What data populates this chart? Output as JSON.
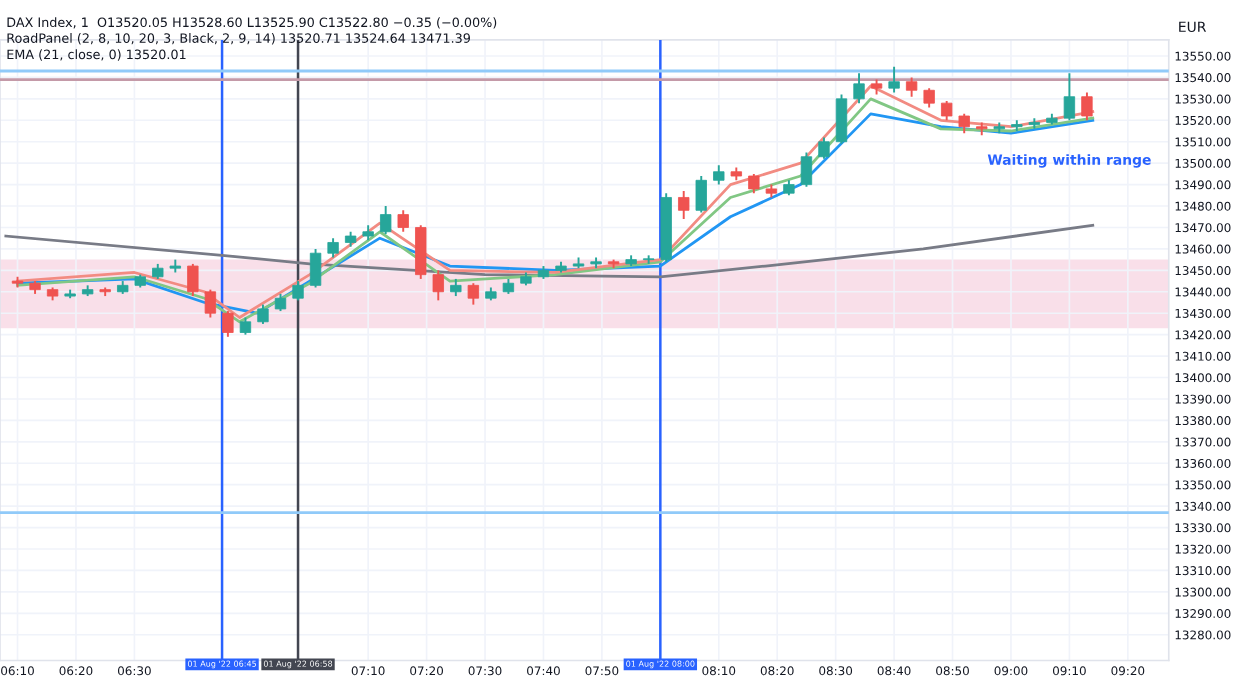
{
  "chart_data": {
    "type": "candlestick",
    "title": "DAX Index, 1  O13520.05 H13528.60 L13525.90 C13522.80 −0.35 (−0.00%)",
    "subtitle": "RoadPanel (2, 8, 10, 20, 3, Black, 2, 9, 14) 13520.71 13524.64 13471.39\nEMA (21, close, 0) 13520.01",
    "ylabel": "EUR",
    "x": [
      "2022-08-01T06:10",
      "2022-08-01T06:13",
      "2022-08-01T06:16",
      "2022-08-01T06:19",
      "2022-08-01T06:22",
      "2022-08-01T06:25",
      "2022-08-01T06:28",
      "2022-08-01T06:31",
      "2022-08-01T06:34",
      "2022-08-01T06:37",
      "2022-08-01T06:40",
      "2022-08-01T06:43",
      "2022-08-01T06:46",
      "2022-08-01T06:49",
      "2022-08-01T06:52",
      "2022-08-01T06:55",
      "2022-08-01T06:58",
      "2022-08-01T07:01",
      "2022-08-01T07:04",
      "2022-08-01T07:07",
      "2022-08-01T07:10",
      "2022-08-01T07:13",
      "2022-08-01T07:16",
      "2022-08-01T07:19",
      "2022-08-01T07:22",
      "2022-08-01T07:25",
      "2022-08-01T07:28",
      "2022-08-01T07:31",
      "2022-08-01T07:34",
      "2022-08-01T07:37",
      "2022-08-01T07:40",
      "2022-08-01T07:43",
      "2022-08-01T07:46",
      "2022-08-01T07:49",
      "2022-08-01T07:52",
      "2022-08-01T07:55",
      "2022-08-01T07:58",
      "2022-08-01T08:01",
      "2022-08-01T08:04",
      "2022-08-01T08:07",
      "2022-08-01T08:10",
      "2022-08-01T08:13",
      "2022-08-01T08:16",
      "2022-08-01T08:19",
      "2022-08-01T08:22",
      "2022-08-01T08:25",
      "2022-08-01T08:28",
      "2022-08-01T08:31",
      "2022-08-01T08:34",
      "2022-08-01T08:37",
      "2022-08-01T08:40",
      "2022-08-01T08:43",
      "2022-08-01T08:46",
      "2022-08-01T08:49",
      "2022-08-01T08:52",
      "2022-08-01T08:55",
      "2022-08-01T08:58",
      "2022-08-01T09:01",
      "2022-08-01T09:04",
      "2022-08-01T09:07",
      "2022-08-01T09:10",
      "2022-08-01T09:13"
    ],
    "ohlc": [
      [
        13445,
        13447,
        13442,
        13444
      ],
      [
        13444,
        13445,
        13439,
        13441
      ],
      [
        13441,
        13442,
        13436,
        13438
      ],
      [
        13438,
        13441,
        13437,
        13439
      ],
      [
        13439,
        13443,
        13438,
        13441
      ],
      [
        13441,
        13442,
        13438,
        13440
      ],
      [
        13440,
        13445,
        13439,
        13443
      ],
      [
        13443,
        13448,
        13442,
        13447
      ],
      [
        13447,
        13453,
        13446,
        13451
      ],
      [
        13451,
        13455,
        13449,
        13452
      ],
      [
        13452,
        13453,
        13438,
        13440
      ],
      [
        13440,
        13441,
        13428,
        13430
      ],
      [
        13430,
        13431,
        13419,
        13421
      ],
      [
        13421,
        13428,
        13420,
        13426
      ],
      [
        13426,
        13434,
        13425,
        13432
      ],
      [
        13432,
        13439,
        13431,
        13437
      ],
      [
        13437,
        13445,
        13436,
        13443
      ],
      [
        13443,
        13460,
        13442,
        13458
      ],
      [
        13458,
        13465,
        13456,
        13463
      ],
      [
        13463,
        13468,
        13461,
        13466
      ],
      [
        13466,
        13471,
        13464,
        13468
      ],
      [
        13468,
        13480,
        13467,
        13476
      ],
      [
        13476,
        13478,
        13468,
        13470
      ],
      [
        13470,
        13471,
        13446,
        13448
      ],
      [
        13448,
        13450,
        13436,
        13440
      ],
      [
        13440,
        13446,
        13438,
        13443
      ],
      [
        13443,
        13444,
        13434,
        13437
      ],
      [
        13437,
        13442,
        13436,
        13440
      ],
      [
        13440,
        13446,
        13439,
        13444
      ],
      [
        13444,
        13449,
        13443,
        13447
      ],
      [
        13447,
        13452,
        13446,
        13450
      ],
      [
        13450,
        13454,
        13449,
        13452
      ],
      [
        13452,
        13456,
        13451,
        13453
      ],
      [
        13453,
        13456,
        13451,
        13454
      ],
      [
        13454,
        13455,
        13451,
        13453
      ],
      [
        13453,
        13457,
        13452,
        13455
      ],
      [
        13455,
        13457,
        13453,
        13455
      ],
      [
        13455,
        13486,
        13454,
        13484
      ],
      [
        13484,
        13487,
        13474,
        13478
      ],
      [
        13478,
        13494,
        13477,
        13492
      ],
      [
        13492,
        13499,
        13490,
        13496
      ],
      [
        13496,
        13498,
        13492,
        13494
      ],
      [
        13494,
        13495,
        13486,
        13488
      ],
      [
        13488,
        13490,
        13484,
        13486
      ],
      [
        13486,
        13492,
        13485,
        13490
      ],
      [
        13490,
        13505,
        13489,
        13503
      ],
      [
        13503,
        13512,
        13502,
        13510
      ],
      [
        13510,
        13532,
        13509,
        13530
      ],
      [
        13530,
        13542,
        13528,
        13537
      ],
      [
        13537,
        13539,
        13532,
        13535
      ],
      [
        13535,
        13545,
        13533,
        13538
      ],
      [
        13538,
        13540,
        13531,
        13534
      ],
      [
        13534,
        13535,
        13526,
        13528
      ],
      [
        13528,
        13529,
        13520,
        13522
      ],
      [
        13522,
        13523,
        13514,
        13517
      ],
      [
        13517,
        13519,
        13513,
        13516
      ],
      [
        13516,
        13519,
        13514,
        13517
      ],
      [
        13517,
        13520,
        13515,
        13518
      ],
      [
        13518,
        13521,
        13516,
        13519
      ],
      [
        13519,
        13523,
        13518,
        13521
      ],
      [
        13521,
        13542,
        13520,
        13531
      ],
      [
        13531,
        13533,
        13520,
        13522
      ]
    ],
    "series": [
      {
        "type": "line",
        "color": "#787b86",
        "x": [
          "2022-08-01T06:08",
          "2022-08-01T06:45",
          "2022-08-01T07:00",
          "2022-08-01T07:30",
          "2022-08-01T08:00",
          "2022-08-01T08:18",
          "2022-08-01T08:45",
          "2022-08-01T09:14"
        ],
        "values": [
          13466,
          13457,
          13453,
          13448,
          13447,
          13452,
          13460,
          13471
        ]
      },
      {
        "type": "line",
        "color": "#2196f3",
        "x": [
          "2022-08-01T06:10",
          "2022-08-01T06:30",
          "2022-08-01T06:42",
          "2022-08-01T06:51",
          "2022-08-01T07:00",
          "2022-08-01T07:12",
          "2022-08-01T07:24",
          "2022-08-01T07:42",
          "2022-08-01T08:00",
          "2022-08-01T08:12",
          "2022-08-01T08:24",
          "2022-08-01T08:36",
          "2022-08-01T08:48",
          "2022-08-01T09:00",
          "2022-08-01T09:14"
        ],
        "values": [
          13444,
          13446,
          13435,
          13430,
          13445,
          13465,
          13452,
          13450,
          13452,
          13475,
          13490,
          13523,
          13517,
          13514,
          13520
        ]
      },
      {
        "type": "line",
        "color": "#81c784",
        "x": [
          "2022-08-01T06:10",
          "2022-08-01T06:30",
          "2022-08-01T06:42",
          "2022-08-01T06:48",
          "2022-08-01T07:00",
          "2022-08-01T07:12",
          "2022-08-01T07:24",
          "2022-08-01T07:42",
          "2022-08-01T08:00",
          "2022-08-01T08:12",
          "2022-08-01T08:24",
          "2022-08-01T08:36",
          "2022-08-01T08:48",
          "2022-08-01T09:00",
          "2022-08-01T09:14"
        ],
        "values": [
          13443,
          13447,
          13437,
          13426,
          13444,
          13468,
          13445,
          13448,
          13454,
          13484,
          13494,
          13530,
          13516,
          13515,
          13521
        ]
      },
      {
        "type": "line",
        "color": "#f28b82",
        "x": [
          "2022-08-01T06:10",
          "2022-08-01T06:30",
          "2022-08-01T06:42",
          "2022-08-01T06:48",
          "2022-08-01T07:00",
          "2022-08-01T07:12",
          "2022-08-01T07:24",
          "2022-08-01T07:42",
          "2022-08-01T08:00",
          "2022-08-01T08:12",
          "2022-08-01T08:24",
          "2022-08-01T08:36",
          "2022-08-01T08:48",
          "2022-08-01T09:00",
          "2022-08-01T09:14"
        ],
        "values": [
          13445,
          13449,
          13440,
          13428,
          13448,
          13472,
          13450,
          13449,
          13455,
          13490,
          13500,
          13536,
          13520,
          13517,
          13524
        ]
      }
    ],
    "xlim": [
      "2022-08-01T06:07",
      "2022-08-01T09:27"
    ],
    "ylim": [
      13268,
      13557.5
    ],
    "xticks": [
      {
        "value": "2022-08-01T06:10",
        "label": "06:10"
      },
      {
        "value": "2022-08-01T06:20",
        "label": "06:20"
      },
      {
        "value": "2022-08-01T06:30",
        "label": "06:30"
      },
      {
        "value": "2022-08-01T07:10",
        "label": "07:10"
      },
      {
        "value": "2022-08-01T07:20",
        "label": "07:20"
      },
      {
        "value": "2022-08-01T07:30",
        "label": "07:30"
      },
      {
        "value": "2022-08-01T07:40",
        "label": "07:40"
      },
      {
        "value": "2022-08-01T07:50",
        "label": "07:50"
      },
      {
        "value": "2022-08-01T08:10",
        "label": "08:10"
      },
      {
        "value": "2022-08-01T08:20",
        "label": "08:20"
      },
      {
        "value": "2022-08-01T08:30",
        "label": "08:30"
      },
      {
        "value": "2022-08-01T08:40",
        "label": "08:40"
      },
      {
        "value": "2022-08-01T08:50",
        "label": "08:50"
      },
      {
        "value": "2022-08-01T09:00",
        "label": "09:00"
      },
      {
        "value": "2022-08-01T09:10",
        "label": "09:10"
      },
      {
        "value": "2022-08-01T09:20",
        "label": "09:20"
      }
    ],
    "yticks": [
      {
        "value": 13280,
        "label": "13280.00"
      },
      {
        "value": 13290,
        "label": "13290.00"
      },
      {
        "value": 13300,
        "label": "13300.00"
      },
      {
        "value": 13310,
        "label": "13310.00"
      },
      {
        "value": 13320,
        "label": "13320.00"
      },
      {
        "value": 13330,
        "label": "13330.00"
      },
      {
        "value": 13340,
        "label": "13340.00"
      },
      {
        "value": 13350,
        "label": "13350.00"
      },
      {
        "value": 13360,
        "label": "13360.00"
      },
      {
        "value": 13370,
        "label": "13370.00"
      },
      {
        "value": 13380,
        "label": "13380.00"
      },
      {
        "value": 13390,
        "label": "13390.00"
      },
      {
        "value": 13400,
        "label": "13400.00"
      },
      {
        "value": 13410,
        "label": "13410.00"
      },
      {
        "value": 13420,
        "label": "13420.00"
      },
      {
        "value": 13430,
        "label": "13430.00"
      },
      {
        "value": 13440,
        "label": "13440.00"
      },
      {
        "value": 13450,
        "label": "13450.00"
      },
      {
        "value": 13460,
        "label": "13460.00"
      },
      {
        "value": 13470,
        "label": "13470.00"
      },
      {
        "value": 13480,
        "label": "13480.00"
      },
      {
        "value": 13490,
        "label": "13490.00"
      },
      {
        "value": 13500,
        "label": "13500.00"
      },
      {
        "value": 13510,
        "label": "13510.00"
      },
      {
        "value": 13520,
        "label": "13520.00"
      },
      {
        "value": 13530,
        "label": "13530.00"
      },
      {
        "value": 13540,
        "label": "13540.00"
      },
      {
        "value": 13550,
        "label": "13550.00"
      }
    ],
    "ref_lines": [
      {
        "axis": "x",
        "value": "2022-08-01T06:45",
        "label": "01 Aug '22 06:45",
        "color": "#2962ff"
      },
      {
        "axis": "x",
        "value": "2022-08-01T06:58",
        "label": "01 Aug '22 06:58",
        "color": "#434651"
      },
      {
        "axis": "x",
        "value": "2022-08-01T08:00",
        "label": "01 Aug '22 08:00",
        "color": "#2962ff"
      },
      {
        "axis": "y",
        "value": 13543,
        "color": "#90caf9"
      },
      {
        "axis": "y",
        "value": 13539,
        "color": "#c49aa8"
      },
      {
        "axis": "y",
        "value": 13337,
        "color": "#90caf9"
      }
    ],
    "bands": [
      {
        "axis": "y",
        "from": 13423,
        "to": 13455,
        "color": "#f8d7e3"
      }
    ],
    "annotations": [
      "Waiting within range"
    ],
    "grid": true,
    "legend": false
  }
}
